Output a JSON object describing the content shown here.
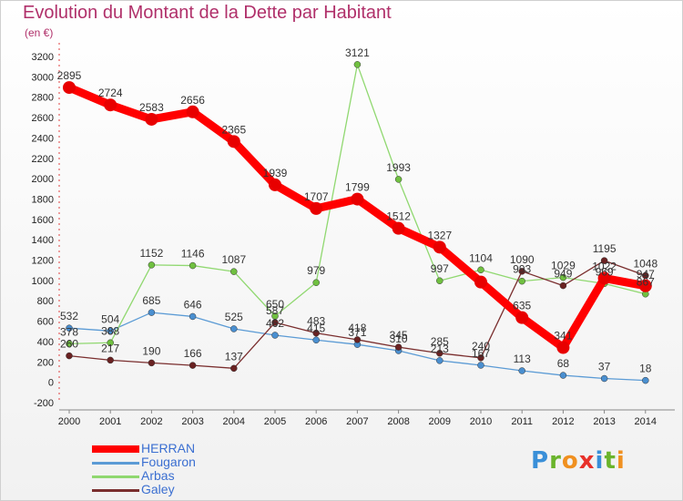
{
  "title": "Evolution du Montant de la Dette par Habitant",
  "unit": "(en €)",
  "logo": [
    "P",
    "r",
    "o",
    "x",
    "i",
    "t",
    "i"
  ],
  "logo_colors": [
    "#3a8fd8",
    "#6ab42c",
    "#f09020",
    "#e8312a",
    "#3a8fd8",
    "#6ab42c",
    "#f09020"
  ],
  "chart_data": {
    "type": "line",
    "categories": [
      "2000",
      "2001",
      "2002",
      "2003",
      "2004",
      "2005",
      "2006",
      "2007",
      "2008",
      "2009",
      "2010",
      "2011",
      "2012",
      "2013",
      "2014"
    ],
    "ylim": [
      -200,
      3200
    ],
    "yticks": [
      -200,
      0,
      200,
      400,
      600,
      800,
      1000,
      1200,
      1400,
      1600,
      1800,
      2000,
      2200,
      2400,
      2600,
      2800,
      3000,
      3200
    ],
    "grid": false,
    "legend_position": "bottom-left",
    "series": [
      {
        "name": "Fougaron",
        "color": "#5b9bd5",
        "dot": "#4a8fd0",
        "width": 1.3,
        "r": 3.5,
        "values": [
          532,
          504,
          685,
          646,
          525,
          462,
          415,
          371,
          310,
          213,
          167,
          113,
          68,
          37,
          18
        ],
        "labels": [
          "532",
          "504",
          "685",
          "646",
          "525",
          "462",
          "415",
          "371",
          "310",
          "213",
          "167",
          "113",
          "68",
          "37",
          "18"
        ]
      },
      {
        "name": "Arbas",
        "color": "#90d870",
        "dot": "#70c040",
        "width": 1.3,
        "r": 3.5,
        "values": [
          378,
          388,
          1152,
          1146,
          1087,
          650,
          979,
          3121,
          1993,
          997,
          1104,
          993,
          1029,
          969,
          867
        ],
        "labels": [
          "378",
          "388",
          "1152",
          "1146",
          "1087",
          "650",
          "979",
          "3121",
          "1993",
          "997",
          "1104",
          "993",
          "1029",
          "969",
          "867"
        ]
      },
      {
        "name": "Galey",
        "color": "#7a2e2e",
        "dot": "#6a2222",
        "width": 1.3,
        "r": 3.5,
        "values": [
          260,
          217,
          190,
          166,
          137,
          587,
          483,
          418,
          345,
          285,
          240,
          1090,
          949,
          1195,
          1048
        ],
        "labels": [
          "260",
          "217",
          "190",
          "166",
          "137",
          "587",
          "483",
          "418",
          "345",
          "285",
          "240",
          "1090",
          "949",
          "1195",
          "1048"
        ]
      },
      {
        "name": "HERRAN",
        "color": "#ff0000",
        "dot": "#e80000",
        "width": 9,
        "r": 7,
        "values": [
          2895,
          2724,
          2583,
          2656,
          2365,
          1939,
          1707,
          1799,
          1512,
          1327,
          984,
          635,
          341,
          1022,
          947
        ],
        "labels": [
          "2895",
          "2724",
          "2583",
          "2656",
          "2365",
          "1939",
          "1707",
          "1799",
          "1512",
          "1327",
          "",
          "635",
          "341",
          "1022",
          "947"
        ]
      }
    ]
  }
}
